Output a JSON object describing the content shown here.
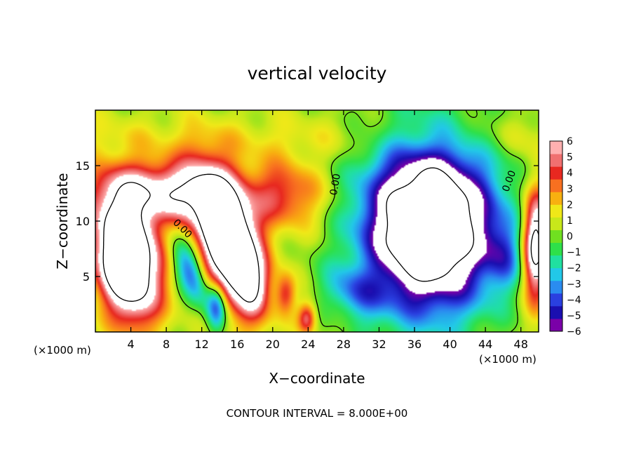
{
  "chart_data": {
    "type": "heatmap",
    "title": "vertical velocity",
    "xlabel": "X−coordinate",
    "ylabel": "Z−coordinate",
    "x_unit_left": "(×1000 m)",
    "x_unit_right": "(×1000 m)",
    "footer": "CONTOUR INTERVAL = 8.000E+00",
    "xlim": [
      0,
      50
    ],
    "ylim": [
      0,
      20
    ],
    "x_ticks": [
      4,
      8,
      12,
      16,
      20,
      24,
      28,
      32,
      36,
      40,
      44,
      48
    ],
    "y_ticks": [
      5,
      10,
      15
    ],
    "colorbar": {
      "range": [
        -6,
        6
      ],
      "tick_values": [
        6,
        5,
        4,
        3,
        2,
        1,
        0,
        -1,
        -2,
        -3,
        -4,
        -5,
        -6
      ],
      "tick_labels": [
        "6",
        "5",
        "4",
        "3",
        "2",
        "1",
        "0",
        "−1",
        "−2",
        "−3",
        "−4",
        "−5",
        "−6"
      ],
      "colors": [
        "#7a00a8",
        "#1a0fb0",
        "#2a40e0",
        "#2a8cf0",
        "#22c8e8",
        "#20e0a0",
        "#2ee04a",
        "#70e020",
        "#c8e81a",
        "#f0e818",
        "#f8b010",
        "#f87020",
        "#e82820",
        "#f07070",
        "#ffb0b0"
      ]
    },
    "contour_labels": [
      {
        "text": "0.00",
        "x": 9.8,
        "z": 9.3,
        "rotate": 45
      },
      {
        "text": "0.00",
        "x": 27.1,
        "z": 13.3,
        "rotate": -80
      },
      {
        "text": "0.00",
        "x": 46.7,
        "z": 13.6,
        "rotate": -70
      }
    ],
    "updrafts": [
      {
        "x": 3.5,
        "z": 6.7,
        "rx": 3.3,
        "rz": 5.2,
        "amp": 14,
        "rot": -14,
        "peak_clipped": true
      },
      {
        "x": 15.0,
        "z": 8.3,
        "rx": 3.0,
        "rz": 6.0,
        "amp": 14,
        "rot": -22,
        "peak_clipped": true
      },
      {
        "x": 9.5,
        "z": 12.6,
        "rx": 4.5,
        "rz": 2.8,
        "amp": 5,
        "rot": -8
      },
      {
        "x": 21.0,
        "z": 12.5,
        "rx": 4.8,
        "rz": 3.0,
        "amp": 4,
        "rot": 5
      },
      {
        "x": 4.0,
        "z": 13.0,
        "rx": 5.0,
        "rz": 2.5,
        "amp": 4,
        "rot": 0
      },
      {
        "x": 49.6,
        "z": 8.0,
        "rx": 1.5,
        "rz": 5.0,
        "amp": 9,
        "rot": 0
      },
      {
        "x": 23.8,
        "z": 1.3,
        "rx": 1.0,
        "rz": 1.4,
        "amp": 4.5,
        "rot": 0
      },
      {
        "x": 21.4,
        "z": 3.5,
        "rx": 1.1,
        "rz": 1.8,
        "amp": 3.5,
        "rot": 0
      },
      {
        "x": 17.8,
        "z": 4.2,
        "rx": 1.4,
        "rz": 2.2,
        "amp": 3,
        "rot": 0
      }
    ],
    "downdrafts": [
      {
        "x": 37.6,
        "z": 9.6,
        "rx": 7.4,
        "rz": 7.6,
        "amp": 13,
        "rot": 0,
        "peak_clipped": true
      },
      {
        "x": 10.6,
        "z": 5.5,
        "rx": 1.5,
        "rz": 3.4,
        "amp": 5,
        "rot": -30
      },
      {
        "x": 13.6,
        "z": 2.4,
        "rx": 1.1,
        "rz": 2.2,
        "amp": 5,
        "rot": 0
      },
      {
        "x": 29.0,
        "z": 3.5,
        "rx": 3.5,
        "rz": 2.0,
        "amp": 3,
        "rot": 20
      },
      {
        "x": 46.0,
        "z": 7.0,
        "rx": 2.0,
        "rz": 3.0,
        "amp": 2.5,
        "rot": 0
      }
    ]
  }
}
